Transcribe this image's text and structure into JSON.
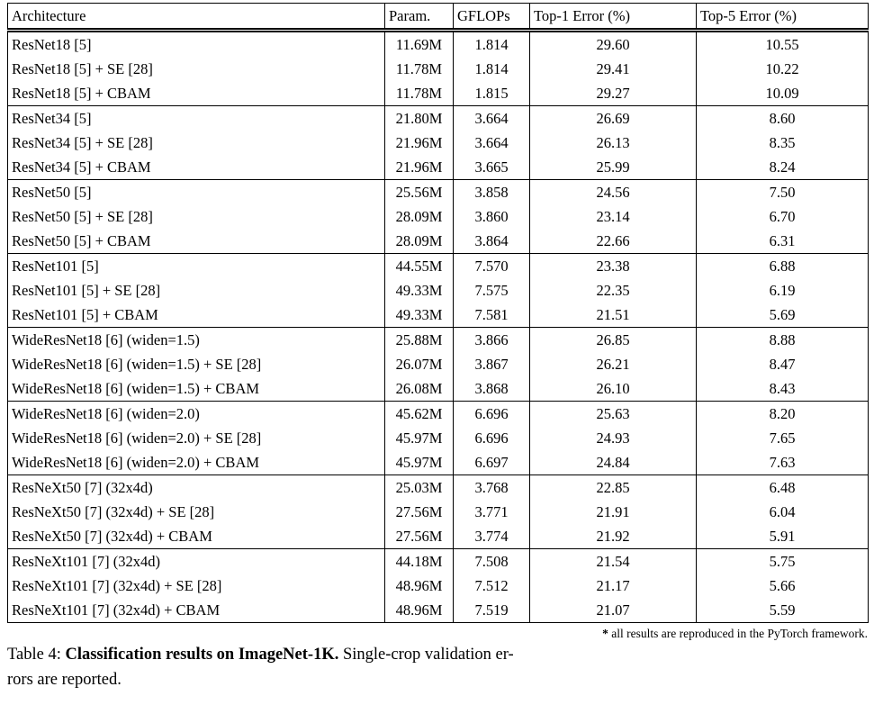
{
  "page": {
    "background_color": "#ffffff",
    "text_color": "#000000",
    "rule_color": "#000000"
  },
  "table": {
    "columns": [
      "Architecture",
      "Param.",
      "GFLOPs",
      "Top-1 Error (%)",
      "Top-5 Error (%)"
    ],
    "groups": [
      {
        "rows": [
          {
            "architecture": "ResNet18 [5]",
            "param": "11.69M",
            "gflops": "1.814",
            "top1": "29.60",
            "top5": "10.55",
            "top1_bold": false,
            "top5_bold": false
          },
          {
            "architecture": "ResNet18 [5] + SE [28]",
            "param": "11.78M",
            "gflops": "1.814",
            "top1": "29.41",
            "top5": "10.22",
            "top1_bold": false,
            "top5_bold": false
          },
          {
            "architecture": "ResNet18 [5] + CBAM",
            "param": "11.78M",
            "gflops": "1.815",
            "top1": "29.27",
            "top5": "10.09",
            "top1_bold": true,
            "top5_bold": true
          }
        ]
      },
      {
        "rows": [
          {
            "architecture": "ResNet34 [5]",
            "param": "21.80M",
            "gflops": "3.664",
            "top1": "26.69",
            "top5": "8.60",
            "top1_bold": false,
            "top5_bold": false
          },
          {
            "architecture": "ResNet34 [5] + SE [28]",
            "param": "21.96M",
            "gflops": "3.664",
            "top1": "26.13",
            "top5": "8.35",
            "top1_bold": false,
            "top5_bold": false
          },
          {
            "architecture": "ResNet34 [5] + CBAM",
            "param": "21.96M",
            "gflops": "3.665",
            "top1": "25.99",
            "top5": "8.24",
            "top1_bold": true,
            "top5_bold": true
          }
        ]
      },
      {
        "rows": [
          {
            "architecture": "ResNet50 [5]",
            "param": "25.56M",
            "gflops": "3.858",
            "top1": "24.56",
            "top5": "7.50",
            "top1_bold": false,
            "top5_bold": false
          },
          {
            "architecture": "ResNet50 [5] + SE [28]",
            "param": "28.09M",
            "gflops": "3.860",
            "top1": "23.14",
            "top5": "6.70",
            "top1_bold": false,
            "top5_bold": false
          },
          {
            "architecture": "ResNet50 [5] + CBAM",
            "param": "28.09M",
            "gflops": "3.864",
            "top1": "22.66",
            "top5": "6.31",
            "top1_bold": true,
            "top5_bold": true
          }
        ]
      },
      {
        "rows": [
          {
            "architecture": "ResNet101 [5]",
            "param": "44.55M",
            "gflops": "7.570",
            "top1": "23.38",
            "top5": "6.88",
            "top1_bold": false,
            "top5_bold": false
          },
          {
            "architecture": "ResNet101 [5] + SE [28]",
            "param": "49.33M",
            "gflops": "7.575",
            "top1": "22.35",
            "top5": "6.19",
            "top1_bold": false,
            "top5_bold": false
          },
          {
            "architecture": "ResNet101 [5] + CBAM",
            "param": "49.33M",
            "gflops": "7.581",
            "top1": "21.51",
            "top5": "5.69",
            "top1_bold": true,
            "top5_bold": true
          }
        ]
      },
      {
        "rows": [
          {
            "architecture": "WideResNet18 [6] (widen=1.5)",
            "param": "25.88M",
            "gflops": "3.866",
            "top1": "26.85",
            "top5": "8.88",
            "top1_bold": false,
            "top5_bold": false
          },
          {
            "architecture": "WideResNet18 [6] (widen=1.5) + SE [28]",
            "param": "26.07M",
            "gflops": "3.867",
            "top1": "26.21",
            "top5": "8.47",
            "top1_bold": false,
            "top5_bold": false
          },
          {
            "architecture": "WideResNet18 [6] (widen=1.5) + CBAM",
            "param": "26.08M",
            "gflops": "3.868",
            "top1": "26.10",
            "top5": "8.43",
            "top1_bold": true,
            "top5_bold": true
          }
        ]
      },
      {
        "rows": [
          {
            "architecture": "WideResNet18 [6] (widen=2.0)",
            "param": "45.62M",
            "gflops": "6.696",
            "top1": "25.63",
            "top5": "8.20",
            "top1_bold": false,
            "top5_bold": false
          },
          {
            "architecture": "WideResNet18 [6] (widen=2.0) + SE [28]",
            "param": "45.97M",
            "gflops": "6.696",
            "top1": "24.93",
            "top5": "7.65",
            "top1_bold": false,
            "top5_bold": false
          },
          {
            "architecture": "WideResNet18 [6] (widen=2.0) + CBAM",
            "param": "45.97M",
            "gflops": "6.697",
            "top1": "24.84",
            "top5": "7.63",
            "top1_bold": true,
            "top5_bold": true
          }
        ]
      },
      {
        "rows": [
          {
            "architecture": "ResNeXt50 [7] (32x4d)",
            "param": "25.03M",
            "gflops": "3.768",
            "top1": "22.85",
            "top5": "6.48",
            "top1_bold": false,
            "top5_bold": false
          },
          {
            "architecture": "ResNeXt50 [7] (32x4d) + SE [28]",
            "param": "27.56M",
            "gflops": "3.771",
            "top1": "21.91",
            "top5": "6.04",
            "top1_bold": true,
            "top5_bold": false
          },
          {
            "architecture": "ResNeXt50 [7] (32x4d) + CBAM",
            "param": "27.56M",
            "gflops": "3.774",
            "top1": "21.92",
            "top5": "5.91",
            "top1_bold": false,
            "top5_bold": true
          }
        ]
      },
      {
        "rows": [
          {
            "architecture": "ResNeXt101 [7] (32x4d)",
            "param": "44.18M",
            "gflops": "7.508",
            "top1": "21.54",
            "top5": "5.75",
            "top1_bold": false,
            "top5_bold": false
          },
          {
            "architecture": "ResNeXt101 [7] (32x4d) + SE [28]",
            "param": "48.96M",
            "gflops": "7.512",
            "top1": "21.17",
            "top5": "5.66",
            "top1_bold": false,
            "top5_bold": false
          },
          {
            "architecture": "ResNeXt101 [7] (32x4d) + CBAM",
            "param": "48.96M",
            "gflops": "7.519",
            "top1": "21.07",
            "top5": "5.59",
            "top1_bold": true,
            "top5_bold": true
          }
        ]
      }
    ]
  },
  "footnote": {
    "marker": "*",
    "text": " all results are reproduced in the PyTorch framework."
  },
  "caption": {
    "prefix": "Table 4: ",
    "bold_text": "Classification results on ImageNet-1K.",
    "rest_line1": " Single-crop validation er-",
    "line2": "rors are reported."
  }
}
